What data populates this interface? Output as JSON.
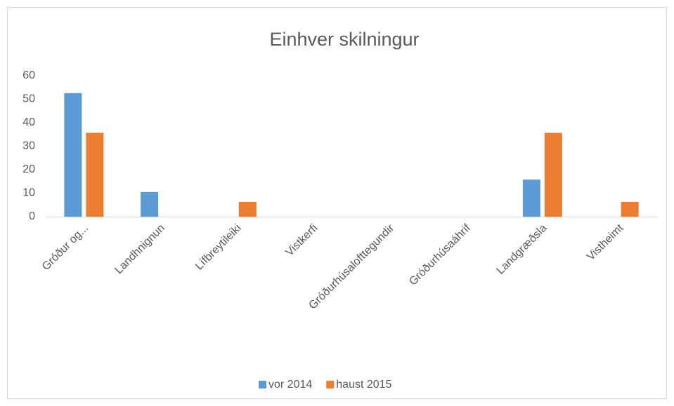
{
  "chart_data": {
    "type": "bar",
    "title": "Einhver skilningur",
    "categories": [
      "Gróður og...",
      "Landhnignun",
      "Lífbreytileiki",
      "Vistkerfi",
      "Gróðurhúsalofttegundir",
      "Gróðurhúsaáhrif",
      "Landgræðsla",
      "Vistheimt"
    ],
    "series": [
      {
        "name": "vor 2014",
        "color": "#5b9bd5",
        "values": [
          52.6,
          10.5,
          0,
          0,
          0,
          0,
          15.8,
          0
        ]
      },
      {
        "name": "haust 2015",
        "color": "#ed7d31",
        "values": [
          35.7,
          0,
          6.3,
          0,
          0,
          0,
          35.7,
          6.3
        ]
      }
    ],
    "ylim": [
      0,
      60
    ],
    "yticks": [
      0,
      10,
      20,
      30,
      40,
      50,
      60
    ],
    "grid": false,
    "legend": "bottom"
  }
}
